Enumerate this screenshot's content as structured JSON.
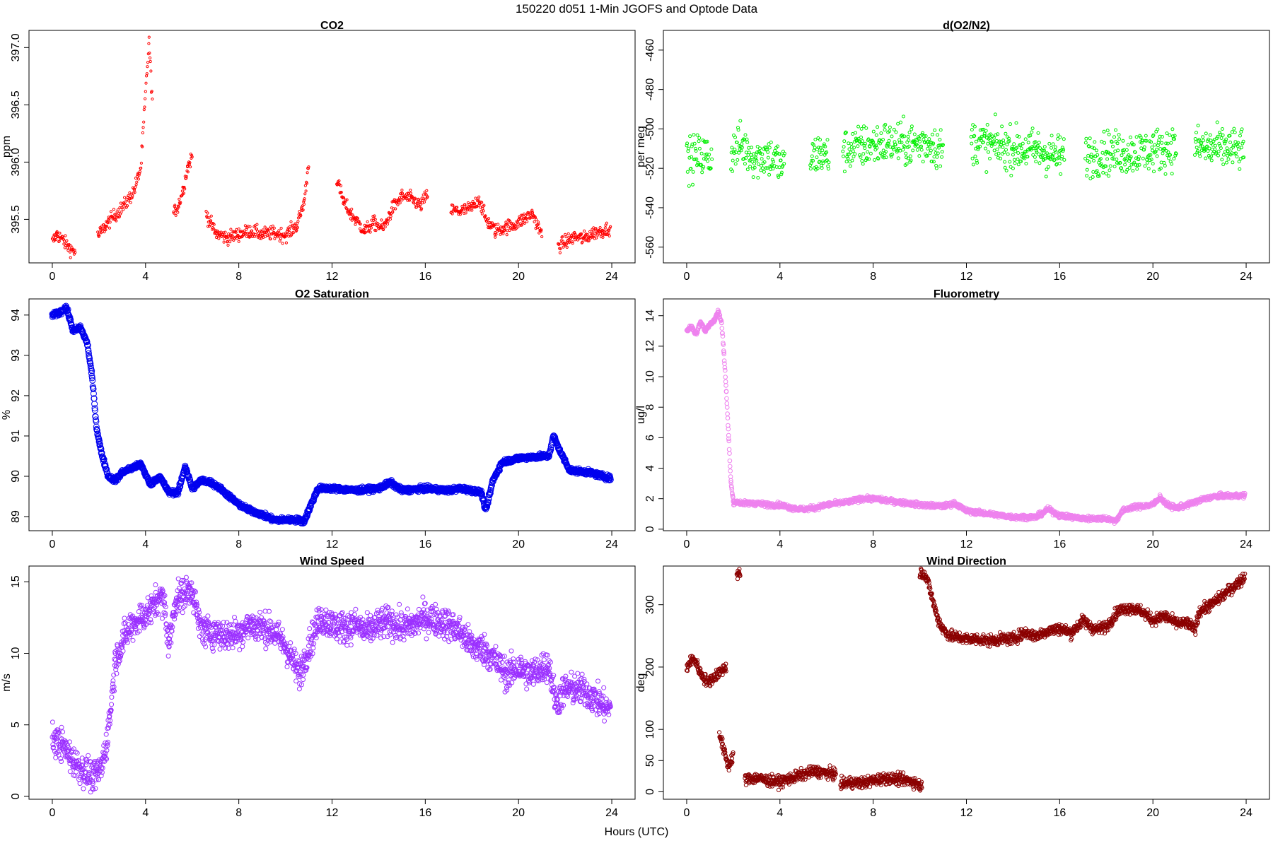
{
  "figure": {
    "title": "150220   d051   1-Min  JGOFS and Optode Data",
    "xlabel": "Hours (UTC)"
  },
  "chart_data": [
    {
      "type": "scatter",
      "title": "CO2",
      "ylabel": "ppm",
      "color": "#ff0000",
      "xlim": [
        -1,
        25
      ],
      "ylim": [
        395.12,
        397.15
      ],
      "xticks": [
        0,
        4,
        8,
        12,
        16,
        20,
        24
      ],
      "yticks": [
        395.5,
        396.0,
        396.5,
        397.0
      ],
      "ytick_labels": [
        "395.5",
        "396.0",
        "396.5",
        "397.0"
      ],
      "marker_size": 1.6,
      "segments": [
        {
          "x": [
            0.0,
            0.2,
            0.4,
            0.6,
            0.8,
            1.0
          ],
          "y": [
            395.3,
            395.37,
            395.33,
            395.28,
            395.24,
            395.22
          ]
        },
        {
          "x": [
            1.95,
            2.3,
            2.6,
            2.9,
            3.2,
            3.5,
            3.8,
            4.0,
            4.15,
            4.3
          ],
          "y": [
            395.35,
            395.45,
            395.52,
            395.58,
            395.65,
            395.75,
            395.95,
            396.6,
            397.05,
            396.5
          ]
        },
        {
          "x": [
            5.2,
            5.4,
            5.6,
            5.8,
            6.0
          ],
          "y": [
            395.55,
            395.62,
            395.75,
            395.95,
            396.05
          ]
        },
        {
          "x": [
            6.6,
            7.0,
            7.5,
            8.0,
            8.5,
            9.0,
            9.5,
            10.0,
            10.5,
            10.8,
            11.0
          ],
          "y": [
            395.55,
            395.38,
            395.34,
            395.37,
            395.4,
            395.37,
            395.38,
            395.36,
            395.45,
            395.65,
            396.0
          ]
        },
        {
          "x": [
            12.2,
            12.5,
            12.8,
            13.0,
            13.4,
            13.8,
            14.2,
            14.6,
            15.0,
            15.4,
            15.8,
            16.1
          ],
          "y": [
            395.85,
            395.65,
            395.55,
            395.5,
            395.4,
            395.47,
            395.42,
            395.6,
            395.7,
            395.68,
            395.62,
            395.72
          ]
        },
        {
          "x": [
            17.1,
            17.5,
            18.0,
            18.3,
            18.6,
            19.0,
            19.4,
            19.8,
            20.2,
            20.6,
            21.0
          ],
          "y": [
            395.58,
            395.57,
            395.6,
            395.68,
            395.5,
            395.4,
            395.43,
            395.45,
            395.5,
            395.55,
            395.36
          ]
        },
        {
          "x": [
            21.7,
            22.0,
            22.4,
            22.8,
            23.2,
            23.6,
            23.95
          ],
          "y": [
            395.27,
            395.3,
            395.35,
            395.33,
            395.38,
            395.4,
            395.43
          ]
        }
      ],
      "scatter": 0.03
    },
    {
      "type": "scatter",
      "title": "d(O2/N2)",
      "ylabel": "per meg",
      "color": "#00ee00",
      "xlim": [
        -1,
        25
      ],
      "ylim": [
        -568,
        -450
      ],
      "xticks": [
        0,
        4,
        8,
        12,
        16,
        20,
        24
      ],
      "yticks": [
        -560,
        -540,
        -520,
        -500,
        -480,
        -460
      ],
      "ytick_labels": [
        "-560",
        "-540",
        "-520",
        "-500",
        "-480",
        "-460"
      ],
      "marker_size": 2.0,
      "segments": [
        {
          "x": [
            0.0,
            0.4,
            0.8,
            1.1
          ],
          "y": [
            -516,
            -514,
            -513,
            -516
          ]
        },
        {
          "x": [
            1.9,
            2.3,
            2.7,
            3.0,
            3.4,
            3.8,
            4.2
          ],
          "y": [
            -512,
            -508,
            -512,
            -515,
            -513,
            -516,
            -520
          ]
        },
        {
          "x": [
            5.3,
            5.7,
            6.1
          ],
          "y": [
            -515,
            -512,
            -515
          ]
        },
        {
          "x": [
            6.7,
            7.5,
            8.5,
            9.5,
            10.5,
            11.0
          ],
          "y": [
            -511,
            -509,
            -507,
            -508,
            -507,
            -512
          ]
        },
        {
          "x": [
            12.2,
            13.0,
            14.0,
            15.0,
            16.0,
            16.2
          ],
          "y": [
            -506,
            -508,
            -510,
            -511,
            -514,
            -513
          ]
        },
        {
          "x": [
            17.1,
            18.0,
            19.0,
            20.0,
            21.0
          ],
          "y": [
            -514,
            -512,
            -512,
            -511,
            -509
          ]
        },
        {
          "x": [
            21.8,
            22.5,
            23.2,
            23.9
          ],
          "y": [
            -509,
            -510,
            -510,
            -511
          ]
        }
      ],
      "scatter": 5.5
    },
    {
      "type": "scatter",
      "title": "O2 Saturation",
      "ylabel": "%",
      "color": "#0000ee",
      "xlim": [
        -1,
        25
      ],
      "ylim": [
        88.65,
        94.4
      ],
      "xticks": [
        0,
        4,
        8,
        12,
        16,
        20,
        24
      ],
      "yticks": [
        89,
        90,
        91,
        92,
        93,
        94
      ],
      "ytick_labels": [
        "89",
        "90",
        "91",
        "92",
        "93",
        "94"
      ],
      "marker_size": 4.0,
      "segments": [
        {
          "x": [
            0.0,
            0.3,
            0.6,
            0.9,
            1.2,
            1.5,
            1.7,
            1.9,
            2.1,
            2.4,
            2.7,
            3.0,
            3.4,
            3.8,
            4.2,
            4.6,
            5.0,
            5.4,
            5.7,
            6.0,
            6.4,
            6.8,
            7.2,
            7.6,
            8.0,
            8.5,
            9.0,
            9.5,
            10.0,
            10.5,
            10.8,
            11.1,
            11.4,
            12.0,
            13.0,
            14.0,
            14.5,
            15.0,
            16.0,
            17.0,
            17.5,
            18.0,
            18.4,
            18.6,
            18.9,
            19.3,
            20.0,
            21.0,
            21.3,
            21.5,
            21.8,
            22.2,
            23.0,
            23.95
          ],
          "y": [
            94.0,
            94.05,
            94.2,
            93.6,
            93.7,
            93.3,
            92.5,
            91.2,
            90.6,
            90.0,
            89.9,
            90.1,
            90.2,
            90.3,
            89.8,
            90.0,
            89.6,
            89.6,
            90.25,
            89.7,
            89.9,
            89.85,
            89.7,
            89.5,
            89.3,
            89.15,
            89.05,
            88.92,
            88.92,
            88.92,
            88.88,
            89.3,
            89.7,
            89.7,
            89.65,
            89.7,
            89.85,
            89.65,
            89.7,
            89.65,
            89.7,
            89.65,
            89.6,
            89.15,
            89.9,
            90.35,
            90.45,
            90.5,
            90.5,
            91.0,
            90.6,
            90.15,
            90.1,
            89.95
          ]
        }
      ],
      "scatter": 0.03
    },
    {
      "type": "scatter",
      "title": "Fluorometry",
      "ylabel": "ug/l",
      "color": "#ee82ee",
      "xlim": [
        -1,
        25
      ],
      "ylim": [
        -0.1,
        15.1
      ],
      "xticks": [
        0,
        4,
        8,
        12,
        16,
        20,
        24
      ],
      "yticks": [
        0,
        2,
        4,
        6,
        8,
        10,
        12,
        14
      ],
      "ytick_labels": [
        "0",
        "2",
        "4",
        "6",
        "8",
        "10",
        "12",
        "14"
      ],
      "marker_size": 2.8,
      "segments": [
        {
          "x": [
            0.0,
            0.2,
            0.4,
            0.6,
            0.8,
            1.0,
            1.2,
            1.35,
            1.5,
            1.6,
            1.7,
            1.8,
            1.9,
            2.0,
            2.5,
            3.0,
            3.5,
            4.0,
            4.5,
            5.0,
            5.5,
            6.0,
            6.5,
            7.0,
            7.5,
            8.0,
            9.0,
            10.0,
            11.0,
            11.5,
            12.0,
            13.0,
            14.0,
            15.0,
            15.5,
            16.0,
            17.0,
            18.0,
            18.4,
            18.7,
            19.0,
            19.5,
            20.0,
            20.3,
            20.6,
            21.0,
            21.5,
            22.0,
            22.5,
            23.0,
            23.95
          ],
          "y": [
            13.0,
            13.3,
            12.8,
            13.6,
            13.0,
            13.5,
            13.7,
            14.3,
            13.5,
            11.5,
            9.0,
            6.0,
            3.0,
            1.8,
            1.7,
            1.7,
            1.6,
            1.6,
            1.4,
            1.3,
            1.4,
            1.6,
            1.7,
            1.8,
            2.0,
            2.0,
            1.8,
            1.6,
            1.5,
            1.7,
            1.2,
            1.0,
            0.8,
            0.8,
            1.3,
            0.9,
            0.7,
            0.7,
            0.55,
            1.2,
            1.4,
            1.5,
            1.6,
            2.1,
            1.6,
            1.4,
            1.6,
            1.9,
            2.1,
            2.2,
            2.2
          ]
        }
      ],
      "scatter": 0.08
    },
    {
      "type": "scatter",
      "title": "Wind Speed",
      "ylabel": "m/s",
      "color": "#9b30ff",
      "xlim": [
        -1,
        25
      ],
      "ylim": [
        -0.2,
        16.1
      ],
      "xticks": [
        0,
        4,
        8,
        12,
        16,
        20,
        24
      ],
      "yticks": [
        0,
        5,
        10,
        15
      ],
      "ytick_labels": [
        "0",
        "5",
        "10",
        "15"
      ],
      "marker_size": 3.0,
      "segments": [
        {
          "x": [
            0.0,
            0.3,
            0.6,
            0.9,
            1.2,
            1.5,
            1.8,
            2.1,
            2.3,
            2.5,
            2.7,
            3.0,
            3.4,
            3.8,
            4.2,
            4.6,
            4.8,
            5.0,
            5.3,
            5.7,
            6.0,
            6.3,
            6.6,
            7.0,
            7.5,
            8.0,
            8.5,
            9.0,
            9.5,
            10.0,
            10.3,
            10.6,
            11.0,
            11.5,
            12.0,
            12.5,
            13.0,
            13.5,
            14.0,
            14.5,
            15.0,
            15.5,
            16.0,
            16.5,
            17.0,
            17.5,
            18.0,
            18.5,
            19.0,
            19.5,
            20.0,
            20.5,
            21.0,
            21.3,
            21.6,
            22.0,
            22.5,
            23.0,
            23.5,
            23.95
          ],
          "y": [
            4.0,
            3.8,
            3.2,
            2.5,
            2.0,
            1.6,
            1.3,
            2.0,
            3.5,
            6.0,
            9.5,
            10.8,
            12.0,
            12.5,
            13.0,
            14.0,
            13.5,
            10.5,
            13.8,
            14.2,
            14.5,
            12.0,
            11.5,
            11.5,
            11.2,
            11.5,
            12.0,
            11.8,
            11.5,
            10.5,
            9.5,
            8.5,
            10.5,
            12.5,
            12.0,
            11.8,
            12.0,
            11.5,
            12.0,
            12.2,
            11.8,
            12.0,
            12.5,
            12.3,
            12.0,
            11.5,
            10.5,
            10.3,
            9.5,
            8.5,
            9.0,
            8.5,
            9.0,
            9.2,
            6.5,
            7.5,
            7.5,
            7.2,
            6.5,
            6.0
          ]
        }
      ],
      "scatter": 0.55
    },
    {
      "type": "scatter",
      "title": "Wind Direction",
      "ylabel": "deg",
      "color": "#8b0000",
      "xlim": [
        -1,
        25
      ],
      "ylim": [
        -12,
        362
      ],
      "xticks": [
        0,
        4,
        8,
        12,
        16,
        20,
        24
      ],
      "yticks": [
        0,
        50,
        100,
        200,
        300
      ],
      "ytick_labels": [
        "0",
        "50",
        "100",
        "200",
        "300"
      ],
      "marker_size": 2.6,
      "segments": [
        {
          "x": [
            0.0,
            0.3,
            0.6,
            0.9,
            1.2,
            1.5,
            1.7
          ],
          "y": [
            200,
            215,
            190,
            175,
            185,
            195,
            200
          ]
        },
        {
          "x": [
            1.4,
            1.6,
            1.8,
            2.0
          ],
          "y": [
            95,
            65,
            40,
            60
          ]
        },
        {
          "x": [
            2.15,
            2.3
          ],
          "y": [
            350,
            348
          ]
        },
        {
          "x": [
            2.5,
            3.0,
            3.5,
            4.0,
            4.5,
            5.0,
            5.5,
            6.0,
            6.4
          ],
          "y": [
            20,
            22,
            18,
            16,
            22,
            28,
            33,
            30,
            28
          ]
        },
        {
          "x": [
            6.6,
            7.0,
            7.5,
            8.0,
            8.5,
            9.0,
            9.5,
            9.8,
            10.1
          ],
          "y": [
            12,
            15,
            14,
            18,
            22,
            20,
            18,
            15,
            8
          ]
        },
        {
          "x": [
            10.0,
            10.2,
            10.4,
            10.6,
            10.8,
            11.0,
            11.3,
            11.6,
            12.0,
            12.5,
            13.0,
            13.5,
            14.0,
            14.5,
            15.0,
            15.5,
            16.0,
            16.5,
            17.0,
            17.5,
            18.0,
            18.5,
            19.0,
            19.5,
            20.0,
            20.5,
            21.0,
            21.5,
            21.8,
            22.0,
            22.5,
            23.0,
            23.5,
            23.95
          ],
          "y": [
            352,
            350,
            330,
            300,
            275,
            260,
            250,
            248,
            245,
            245,
            242,
            245,
            245,
            255,
            250,
            258,
            262,
            255,
            275,
            260,
            265,
            290,
            295,
            290,
            275,
            282,
            270,
            270,
            260,
            290,
            300,
            315,
            330,
            345
          ]
        }
      ],
      "scatter": 4.5
    }
  ]
}
